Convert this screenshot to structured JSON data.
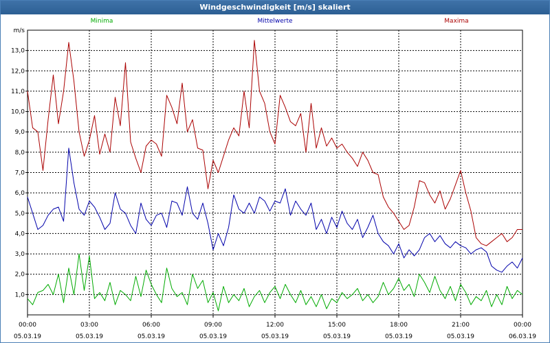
{
  "window": {
    "title": "Windgeschwindigkeit [m/s] skaliert"
  },
  "chart_data": {
    "type": "line",
    "title": "Windgeschwindigkeit [m/s] skaliert",
    "ylabel": "m/s",
    "ylim": [
      0,
      14
    ],
    "yticks": [
      "1,0",
      "2,0",
      "3,0",
      "4,0",
      "5,0",
      "6,0",
      "7,0",
      "8,0",
      "9,0",
      "10,0",
      "11,0",
      "12,0",
      "13,0"
    ],
    "xlim_hours": [
      0,
      24
    ],
    "xticks": [
      {
        "time": "00:00",
        "date": "05.03.19"
      },
      {
        "time": "03:00",
        "date": "05.03.19"
      },
      {
        "time": "06:00",
        "date": "05.03.19"
      },
      {
        "time": "09:00",
        "date": "05.03.19"
      },
      {
        "time": "12:00",
        "date": "05.03.19"
      },
      {
        "time": "15:00",
        "date": "05.03.19"
      },
      {
        "time": "18:00",
        "date": "05.03.19"
      },
      {
        "time": "21:00",
        "date": "05.03.19"
      },
      {
        "time": "00:00",
        "date": "06.03.19"
      }
    ],
    "grid": true,
    "legend_placement": "top",
    "series": [
      {
        "name": "Minima",
        "color": "#00aa00",
        "x_hours": [
          0.0,
          0.25,
          0.5,
          0.75,
          1.0,
          1.25,
          1.5,
          1.75,
          2.0,
          2.25,
          2.5,
          2.75,
          3.0,
          3.25,
          3.5,
          3.75,
          4.0,
          4.25,
          4.5,
          4.75,
          5.0,
          5.25,
          5.5,
          5.75,
          6.0,
          6.25,
          6.5,
          6.75,
          7.0,
          7.25,
          7.5,
          7.75,
          8.0,
          8.25,
          8.5,
          8.75,
          9.0,
          9.25,
          9.5,
          9.75,
          10.0,
          10.25,
          10.5,
          10.75,
          11.0,
          11.25,
          11.5,
          11.75,
          12.0,
          12.25,
          12.5,
          12.75,
          13.0,
          13.25,
          13.5,
          13.75,
          14.0,
          14.25,
          14.5,
          14.75,
          15.0,
          15.25,
          15.5,
          15.75,
          16.0,
          16.25,
          16.5,
          16.75,
          17.0,
          17.25,
          17.5,
          17.75,
          18.0,
          18.25,
          18.5,
          18.75,
          19.0,
          19.25,
          19.5,
          19.75,
          20.0,
          20.25,
          20.5,
          20.75,
          21.0,
          21.25,
          21.5,
          21.75,
          22.0,
          22.25,
          22.5,
          22.75,
          23.0,
          23.25,
          23.5,
          23.75,
          24.0
        ],
        "values": [
          0.8,
          0.5,
          1.1,
          1.2,
          1.5,
          1.0,
          2.0,
          0.6,
          2.3,
          1.0,
          3.0,
          1.2,
          2.9,
          0.8,
          1.1,
          0.7,
          1.6,
          0.5,
          1.2,
          1.0,
          0.7,
          1.9,
          0.9,
          2.2,
          1.5,
          1.0,
          0.6,
          2.3,
          1.3,
          0.9,
          1.1,
          0.5,
          2.0,
          1.3,
          1.7,
          0.6,
          1.1,
          0.2,
          1.4,
          0.6,
          1.0,
          0.7,
          1.3,
          0.4,
          0.9,
          1.2,
          0.6,
          1.1,
          1.4,
          0.8,
          1.5,
          1.0,
          0.6,
          1.2,
          0.5,
          0.9,
          0.4,
          1.0,
          0.3,
          0.8,
          0.6,
          1.1,
          0.8,
          1.0,
          1.3,
          0.7,
          1.0,
          0.6,
          0.9,
          1.6,
          1.0,
          1.3,
          1.8,
          1.2,
          1.5,
          0.9,
          2.0,
          1.6,
          1.1,
          1.9,
          1.2,
          0.8,
          1.4,
          0.7,
          1.5,
          1.1,
          0.5,
          0.9,
          0.7,
          1.2,
          0.4,
          1.0,
          0.5,
          1.4,
          0.8,
          1.2,
          1.0
        ],
        "label_x_hours": 3.6
      },
      {
        "name": "Mittelwerte",
        "color": "#0000aa",
        "x_hours": [
          0.0,
          0.25,
          0.5,
          0.75,
          1.0,
          1.25,
          1.5,
          1.75,
          2.0,
          2.25,
          2.5,
          2.75,
          3.0,
          3.25,
          3.5,
          3.75,
          4.0,
          4.25,
          4.5,
          4.75,
          5.0,
          5.25,
          5.5,
          5.75,
          6.0,
          6.25,
          6.5,
          6.75,
          7.0,
          7.25,
          7.5,
          7.75,
          8.0,
          8.25,
          8.5,
          8.75,
          9.0,
          9.25,
          9.5,
          9.75,
          10.0,
          10.25,
          10.5,
          10.75,
          11.0,
          11.25,
          11.5,
          11.75,
          12.0,
          12.25,
          12.5,
          12.75,
          13.0,
          13.25,
          13.5,
          13.75,
          14.0,
          14.25,
          14.5,
          14.75,
          15.0,
          15.25,
          15.5,
          15.75,
          16.0,
          16.25,
          16.5,
          16.75,
          17.0,
          17.25,
          17.5,
          17.75,
          18.0,
          18.25,
          18.5,
          18.75,
          19.0,
          19.25,
          19.5,
          19.75,
          20.0,
          20.25,
          20.5,
          20.75,
          21.0,
          21.25,
          21.5,
          21.75,
          22.0,
          22.25,
          22.5,
          22.75,
          23.0,
          23.25,
          23.5,
          23.75,
          24.0
        ],
        "values": [
          5.8,
          5.0,
          4.2,
          4.4,
          4.9,
          5.2,
          5.3,
          4.6,
          8.2,
          6.5,
          5.2,
          4.9,
          5.6,
          5.3,
          4.8,
          4.2,
          4.5,
          6.0,
          5.2,
          5.0,
          4.4,
          4.0,
          5.5,
          4.7,
          4.4,
          4.9,
          5.0,
          4.3,
          5.6,
          5.5,
          4.9,
          6.3,
          5.0,
          4.7,
          5.5,
          4.5,
          3.2,
          4.0,
          3.4,
          4.3,
          5.9,
          5.2,
          5.0,
          5.5,
          5.0,
          5.8,
          5.6,
          5.1,
          5.6,
          5.5,
          6.2,
          4.9,
          5.6,
          5.2,
          4.9,
          5.5,
          4.2,
          4.7,
          4.0,
          4.8,
          4.3,
          5.1,
          4.5,
          4.2,
          4.7,
          3.8,
          4.3,
          4.9,
          4.0,
          3.6,
          3.4,
          3.0,
          3.5,
          2.8,
          3.2,
          2.9,
          3.2,
          3.8,
          4.0,
          3.6,
          3.9,
          3.5,
          3.3,
          3.6,
          3.4,
          3.3,
          3.0,
          3.2,
          3.3,
          3.1,
          2.4,
          2.2,
          2.1,
          2.4,
          2.6,
          2.3,
          2.8
        ]
      },
      {
        "name": "Maxima",
        "color": "#aa0000",
        "x_hours": [
          0.0,
          0.25,
          0.5,
          0.75,
          1.0,
          1.25,
          1.5,
          1.75,
          2.0,
          2.25,
          2.5,
          2.75,
          3.0,
          3.25,
          3.5,
          3.75,
          4.0,
          4.25,
          4.5,
          4.75,
          5.0,
          5.25,
          5.5,
          5.75,
          6.0,
          6.25,
          6.5,
          6.75,
          7.0,
          7.25,
          7.5,
          7.75,
          8.0,
          8.25,
          8.5,
          8.75,
          9.0,
          9.25,
          9.5,
          9.75,
          10.0,
          10.25,
          10.5,
          10.75,
          11.0,
          11.25,
          11.5,
          11.75,
          12.0,
          12.25,
          12.5,
          12.75,
          13.0,
          13.25,
          13.5,
          13.75,
          14.0,
          14.25,
          14.5,
          14.75,
          15.0,
          15.25,
          15.5,
          15.75,
          16.0,
          16.25,
          16.5,
          16.75,
          17.0,
          17.25,
          17.5,
          17.75,
          18.0,
          18.25,
          18.5,
          18.75,
          19.0,
          19.25,
          19.5,
          19.75,
          20.0,
          20.25,
          20.5,
          20.75,
          21.0,
          21.25,
          21.5,
          21.75,
          22.0,
          22.25,
          22.5,
          22.75,
          23.0,
          23.25,
          23.5,
          23.75,
          24.0
        ],
        "values": [
          11.0,
          9.2,
          9.0,
          7.1,
          9.6,
          11.8,
          9.4,
          11.0,
          13.4,
          11.5,
          9.0,
          7.8,
          8.6,
          9.8,
          7.9,
          8.9,
          8.0,
          10.7,
          9.3,
          12.4,
          8.5,
          7.7,
          7.0,
          8.3,
          8.6,
          8.4,
          7.8,
          10.8,
          10.2,
          9.4,
          11.4,
          9.0,
          9.6,
          8.2,
          8.1,
          6.2,
          7.6,
          7.0,
          7.8,
          8.6,
          9.2,
          8.8,
          11.0,
          9.2,
          13.5,
          11.0,
          10.4,
          9.0,
          8.4,
          10.8,
          10.2,
          9.5,
          9.3,
          9.9,
          8.0,
          10.4,
          8.2,
          9.2,
          8.3,
          8.7,
          8.2,
          8.4,
          8.0,
          7.7,
          7.3,
          8.0,
          7.6,
          7.0,
          6.9,
          5.8,
          5.3,
          5.0,
          4.6,
          4.2,
          4.4,
          5.3,
          6.6,
          6.5,
          5.9,
          5.5,
          6.1,
          5.2,
          5.7,
          6.4,
          7.1,
          6.0,
          5.1,
          3.8,
          3.5,
          3.4,
          3.6,
          3.8,
          4.0,
          3.6,
          3.8,
          4.2,
          4.2
        ],
        "label_x_hours": 20.8
      }
    ]
  }
}
